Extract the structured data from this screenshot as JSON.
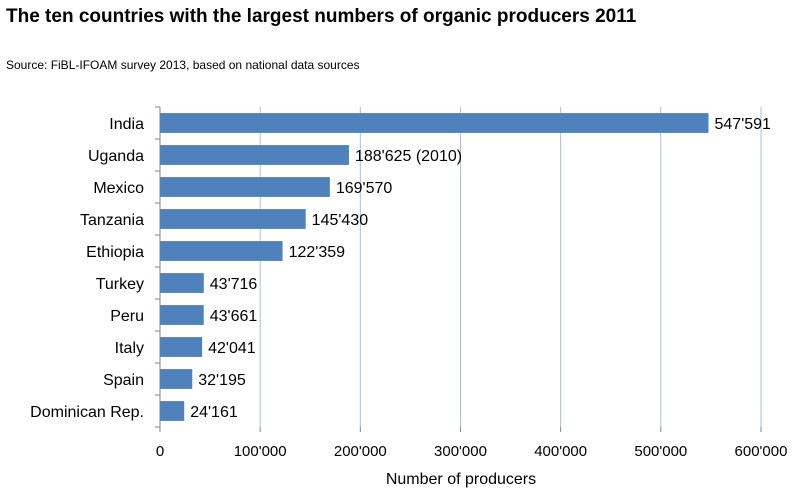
{
  "title_text": "The ten countries with the largest numbers of organic producers 2011",
  "subtitle_text": "Source: FiBL-IFOAM survey 2013, based on national data sources",
  "colors": {
    "bar": "#4f81bd",
    "grid": "#a8c0dc",
    "axis": "#868686"
  },
  "chart_data": {
    "type": "bar",
    "orientation": "horizontal",
    "title": "The ten countries with the largest numbers of organic producers 2011",
    "subtitle": "Source: FiBL-IFOAM survey 2013, based on national data sources",
    "categories": [
      "India",
      "Uganda",
      "Mexico",
      "Tanzania",
      "Ethiopia",
      "Turkey",
      "Peru",
      "Italy",
      "Spain",
      "Dominican Rep."
    ],
    "values": [
      547591,
      188625,
      169570,
      145430,
      122359,
      43716,
      43661,
      42041,
      32195,
      24161
    ],
    "data_labels": [
      "547'591",
      "188'625 (2010)",
      "169'570",
      "145'430",
      "122'359",
      "43'716",
      "43'661",
      "42'041",
      "32'195",
      "24'161"
    ],
    "xlabel": "Number of producers",
    "ylabel": "",
    "xlim": [
      0,
      600000
    ],
    "xticks": [
      0,
      100000,
      200000,
      300000,
      400000,
      500000,
      600000
    ],
    "xtick_labels": [
      "0",
      "100'000",
      "200'000",
      "300'000",
      "400'000",
      "500'000",
      "600'000"
    ],
    "grid": "vertical",
    "legend": "none"
  }
}
